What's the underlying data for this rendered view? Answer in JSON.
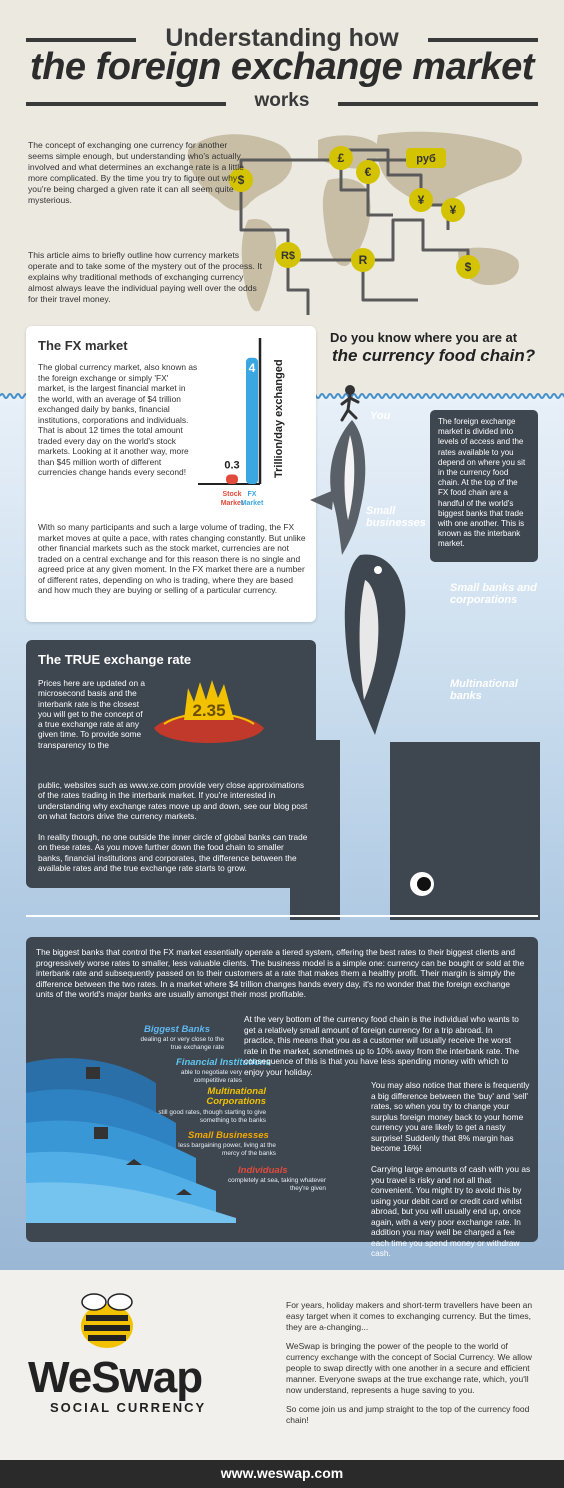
{
  "header": {
    "line1": "Understanding how",
    "line2": "the foreign exchange market",
    "line3": "works"
  },
  "intro": {
    "p1": "The concept of exchanging one currency for another seems simple enough, but understanding who's actually involved and what determines an exchange rate is a little more complicated. By the time you try to figure out why you're being charged a given rate it can all seem quite mysterious.",
    "p2": "This article aims to briefly outline how currency markets operate and to take some of the mystery out of the process. It explains why traditional methods of exchanging currency almost always leave the individual paying well over the odds for their travel money."
  },
  "map": {
    "symbols": [
      "£",
      "руб",
      "€",
      "$",
      "¥",
      "¥",
      "R$",
      "R",
      "$"
    ]
  },
  "fx_market": {
    "title": "The FX market",
    "p1": "The global currency market, also known as the foreign exchange or simply 'FX' market, is the largest financial market in the world, with an average of $4 trillion exchanged daily by banks, financial institutions, corporations and individuals. That is about 12 times the total amount traded every day on the world's stock markets. Looking at it another way, more than $45 million worth of different currencies change hands every second!",
    "p2": "With so many participants and such a large volume of trading, the FX market moves at quite a pace, with rates changing constantly. But unlike other financial markets such as the stock market, currencies are not traded on a central exchange and for this reason there is no single and agreed price at any given moment. In the FX market there are a number of different rates, depending on who is trading, where they are based and how much they are buying or selling of a particular currency."
  },
  "chart_data": {
    "type": "bar",
    "categories": [
      "Stock Market",
      "FX Market"
    ],
    "values": [
      0.3,
      4
    ],
    "value_labels": [
      "0.3",
      "4"
    ],
    "ylabel": "Trillion/day exchanged",
    "colors": [
      "#e04b3c",
      "#3aa7e0"
    ],
    "ylim": [
      0,
      4.5
    ]
  },
  "food_chain": {
    "q1": "Do you know where you are at",
    "q2": "the currency food chain?",
    "you": "You",
    "small_businesses": "Small businesses",
    "small_banks": "Small banks and corporations",
    "multinational": "Multinational banks",
    "side_box": "The foreign exchange market is divided into levels of access and the rates available to you depend on where you sit in the currency food chain. At the top of the FX food chain are a handful of the world's biggest banks that trade with one another. This is known as the interbank market."
  },
  "true_rate": {
    "title": "The TRUE exchange rate",
    "price": "2.35",
    "p1": "Prices here are updated on a microsecond basis and the interbank rate is the closest you will get to the concept of a true exchange rate at any given time. To provide some transparency to the",
    "p2": "public, websites such as www.xe.com provide very close approximations of the rates trading in the interbank market. If you're interested in understanding why exchange rates move up and down, see our blog post on what factors drive the currency markets.",
    "p3": "In reality though, no one outside the inner circle of global banks can trade on these rates. As you move further down the food chain to smaller banks, financial institutions and corporates, the difference between the available rates and the true exchange rate starts to grow."
  },
  "tiers": {
    "intro": "The biggest banks that control the FX market essentially operate a tiered system, offering the best rates to their biggest clients and progressively worse rates to smaller, less valuable clients. The business model is a simple one: currency can be bought or sold at the interbank rate and subsequently passed on to their customers at a rate that makes them a healthy profit. Their margin is simply the difference between the two rates. In a market where $4 trillion changes hands every day, it's no wonder that the foreign exchange units of the world's major banks are usually amongst their most profitable.",
    "bottom1": "At the very bottom of the currency food chain is the individual who wants to get a relatively small amount of foreign currency for a trip abroad. In practice, this means that you as a customer will usually receive the worst rate in the market, sometimes up to 10% away from the interbank rate. The consequence of this is that you have less spending money with which to enjoy your holiday.",
    "bottom2": "You may also notice that there is frequently a big difference between the 'buy' and 'sell' rates, so when you try to change your surplus foreign money back to your home currency you are likely to get a nasty surprise! Suddenly that 8% margin has become 16%!",
    "bottom3": "Carrying large amounts of cash with you as you travel is risky and not all that convenient. You might try to avoid this by using your debit card or credit card whilst abroad, but you will usually end up, once again, with a very poor exchange rate. In addition you may well be charged a fee each time you spend money or withdraw cash.",
    "levels": [
      {
        "name": "Biggest Banks",
        "desc": "dealing at or very close to the true exchange rate",
        "color": "#5fb8f0"
      },
      {
        "name": "Financial Institutions",
        "desc": "able to negotiate very competitive rates",
        "color": "#5fc8f0"
      },
      {
        "name": "Multinational Corporations",
        "desc": "still good rates, though starting to give something to the banks",
        "color": "#f2c200"
      },
      {
        "name": "Small Businesses",
        "desc": "less bargaining power, living at the mercy of the banks",
        "color": "#f2a900"
      },
      {
        "name": "Individuals",
        "desc": "completely at sea, taking whatever they're given",
        "color": "#e04b3c"
      }
    ]
  },
  "footer": {
    "p1": "For years, holiday makers and short-term travellers have been an easy target when it comes to exchanging currency. But the times, they are a-changing...",
    "p2": "WeSwap is bringing the power of the people to the world of currency exchange with the concept of Social Currency. We allow people to swap directly with one another in a secure and efficient manner. Everyone swaps at the true exchange rate, which, you'll now understand, represents a huge saving to you.",
    "p3": "So come join us and jump straight to the top of the currency food chain!",
    "logo": "WeSwap",
    "logo_sub": "SOCIAL CURRENCY",
    "url": "www.weswap.com"
  }
}
